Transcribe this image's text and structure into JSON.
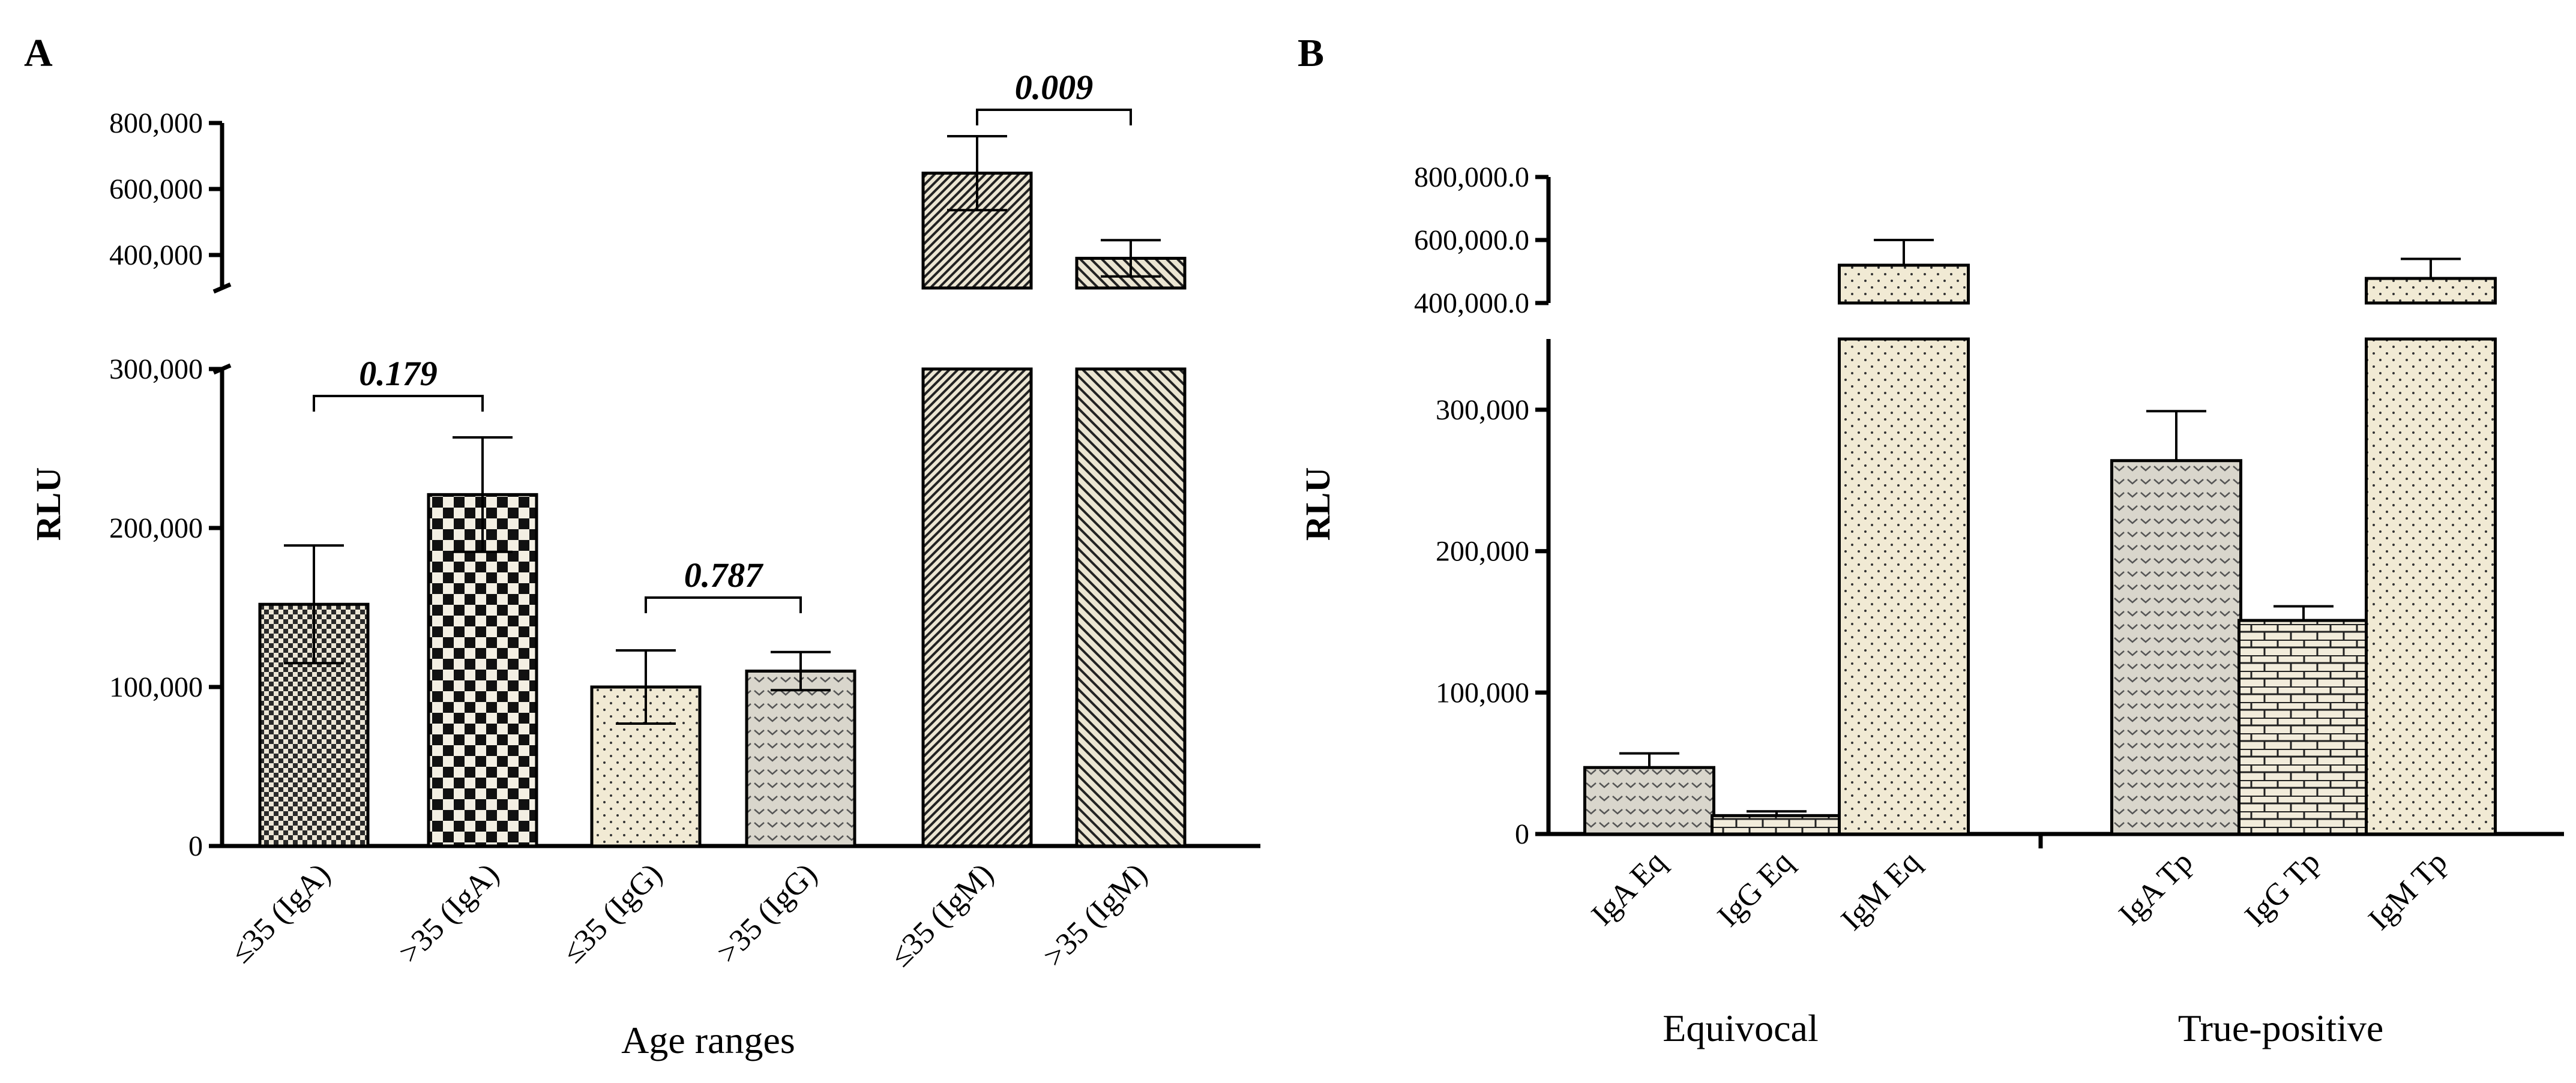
{
  "chart_data": [
    {
      "panel": "A",
      "type": "bar",
      "ylabel": "RLU",
      "xlabel": "Age ranges",
      "y_axis_break": {
        "lower_range": [
          0,
          300000
        ],
        "upper_range": [
          300000,
          800000
        ]
      },
      "lower_ticks": [
        "0",
        "100,000",
        "200,000",
        "300,000"
      ],
      "upper_ticks": [
        "400,000",
        "600,000",
        "800,000"
      ],
      "categories": [
        "≤35 (IgA)",
        ">35 (IgA)",
        "≤35 (IgG)",
        ">35 (IgG)",
        "≤35 (IgM)",
        ">35 (IgM)"
      ],
      "values": [
        152000,
        221000,
        100000,
        110000,
        648000,
        390000
      ],
      "error": [
        37000,
        36000,
        23000,
        12000,
        112000,
        55000
      ],
      "patterns": [
        "fine-check",
        "checker",
        "dots",
        "chevron",
        "diag-dense",
        "diag"
      ],
      "comparisons": [
        {
          "pair": [
            0,
            1
          ],
          "p": "0.179"
        },
        {
          "pair": [
            2,
            3
          ],
          "p": "0.787"
        },
        {
          "pair": [
            4,
            5
          ],
          "p": "0.009"
        }
      ]
    },
    {
      "panel": "B",
      "type": "bar",
      "ylabel": "RLU",
      "y_axis_break": {
        "lower_range": [
          0,
          350000
        ],
        "upper_range": [
          400000,
          800000
        ]
      },
      "lower_ticks": [
        "0",
        "100,000",
        "200,000",
        "300,000"
      ],
      "upper_ticks": [
        "400,000.0",
        "600,000.0",
        "800,000.0"
      ],
      "categories": [
        "IgA Eq",
        "IgG Eq",
        "IgM Eq",
        "IgA Tp",
        "IgG Tp",
        "IgM Tp"
      ],
      "groups": [
        "Equivocal",
        "True-positive"
      ],
      "values": [
        47000,
        13000,
        520000,
        264000,
        151000,
        478000
      ],
      "error": [
        10000,
        3000,
        80000,
        35000,
        10000,
        62000
      ],
      "patterns": [
        "chevron",
        "brick",
        "dots",
        "chevron",
        "brick",
        "dots"
      ]
    }
  ]
}
